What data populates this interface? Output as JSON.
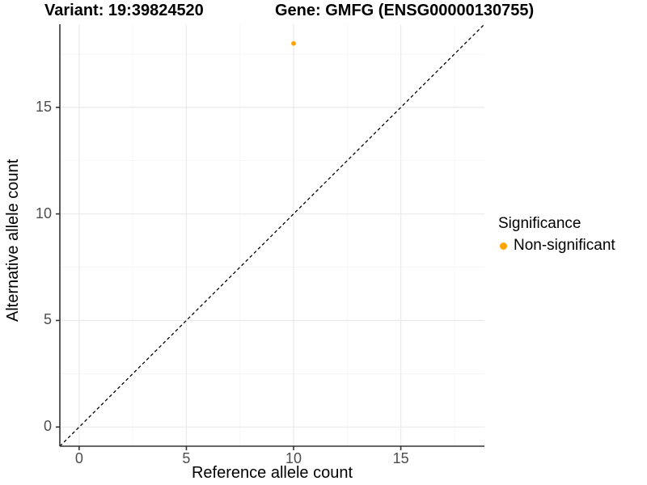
{
  "titles": {
    "variant": "Variant: 19:39824520",
    "gene": "Gene: GMFG (ENSG00000130755)"
  },
  "chart_data": {
    "type": "scatter",
    "xlabel": "Reference allele count",
    "ylabel": "Alternative allele count",
    "xlim": [
      -0.9,
      18.9
    ],
    "ylim": [
      -0.9,
      18.9
    ],
    "x_ticks": [
      0,
      5,
      10,
      15
    ],
    "y_ticks": [
      0,
      5,
      10,
      15
    ],
    "x_minor_ticks": [
      2.5,
      7.5,
      12.5,
      17.5
    ],
    "y_minor_ticks": [
      2.5,
      7.5,
      12.5,
      17.5
    ],
    "grid": "on",
    "reference_line": {
      "type": "abline",
      "slope": 1,
      "intercept": 0,
      "style": "dashed",
      "color": "#000000"
    },
    "series": [
      {
        "name": "Non-significant",
        "color": "#FFA500",
        "points": [
          {
            "x": 10,
            "y": 18
          }
        ]
      }
    ],
    "legend": {
      "title": "Significance",
      "position": "right",
      "items": [
        {
          "label": "Non-significant",
          "color": "#FFA500"
        }
      ]
    }
  },
  "colors": {
    "background": "#ffffff",
    "axis_line": "#333333",
    "tick_label": "#4d4d4d",
    "grid_major": "#ebebeb",
    "grid_minor": "#f5f5f5",
    "point": "#FFA500"
  }
}
